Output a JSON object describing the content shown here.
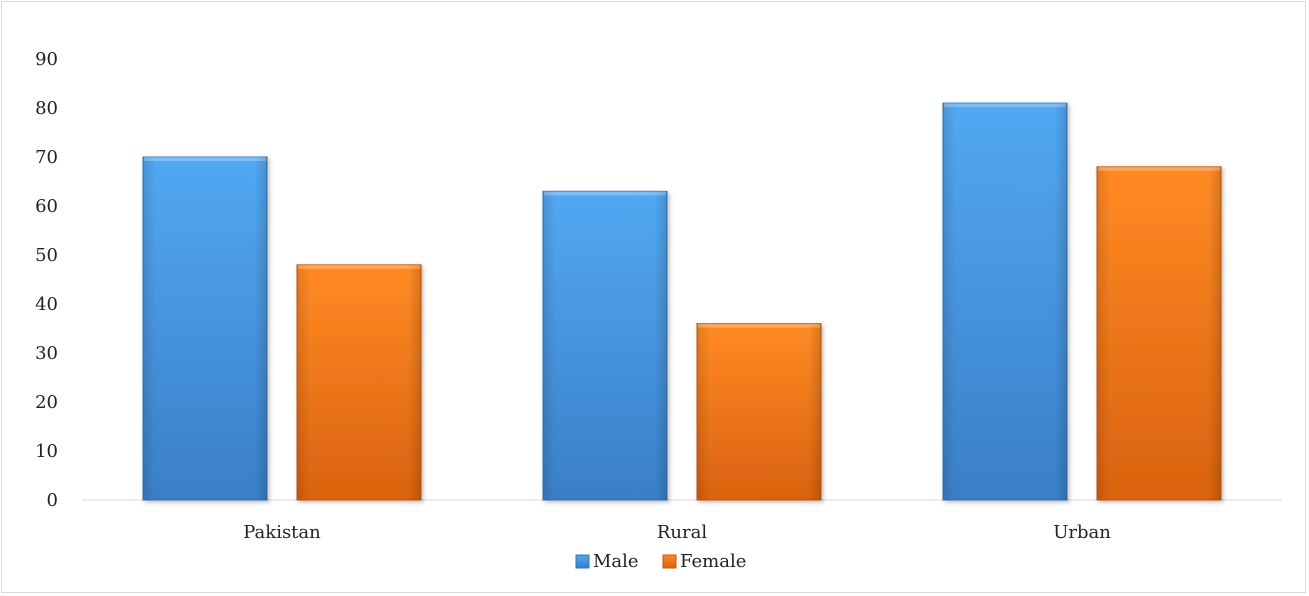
{
  "chart_data": {
    "type": "bar",
    "categories": [
      "Pakistan",
      "Rural",
      "Urban"
    ],
    "series": [
      {
        "name": "Male",
        "values": [
          70,
          63,
          81
        ],
        "color": "#4a9be6"
      },
      {
        "name": "Female",
        "values": [
          48,
          36,
          68
        ],
        "color": "#f57c1a"
      }
    ],
    "title": "",
    "xlabel": "",
    "ylabel": "",
    "ylim": [
      0,
      90
    ],
    "yticks": [
      "0",
      "10",
      "20",
      "30",
      "40",
      "50",
      "60",
      "70",
      "80",
      "90"
    ],
    "grid": false,
    "legend_position": "bottom"
  }
}
